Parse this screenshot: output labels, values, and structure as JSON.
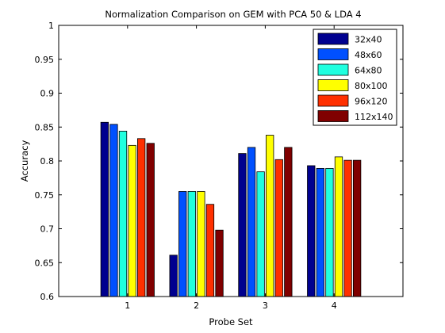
{
  "chart_data": {
    "type": "bar",
    "title": "Normalization Comparison on GEM with PCA 50 & LDA 4",
    "xlabel": "Probe Set",
    "ylabel": "Accuracy",
    "categories": [
      "1",
      "2",
      "3",
      "4"
    ],
    "xlim": [
      0,
      5
    ],
    "ylim": [
      0.6,
      1.0
    ],
    "yticks": [
      "0.6",
      "0.65",
      "0.7",
      "0.75",
      "0.8",
      "0.85",
      "0.9",
      "0.95",
      "1"
    ],
    "legend_position": "top-right",
    "grid": false,
    "series": [
      {
        "name": "32x40",
        "color": "#00008f",
        "values": [
          0.857,
          0.661,
          0.811,
          0.793
        ]
      },
      {
        "name": "48x60",
        "color": "#0050ff",
        "values": [
          0.854,
          0.755,
          0.82,
          0.789
        ]
      },
      {
        "name": "64x80",
        "color": "#20ffdf",
        "values": [
          0.844,
          0.755,
          0.784,
          0.789
        ]
      },
      {
        "name": "80x100",
        "color": "#ffff00",
        "values": [
          0.823,
          0.755,
          0.838,
          0.806
        ]
      },
      {
        "name": "96x120",
        "color": "#ff3000",
        "values": [
          0.833,
          0.736,
          0.802,
          0.801
        ]
      },
      {
        "name": "112x140",
        "color": "#800000",
        "values": [
          0.826,
          0.698,
          0.82,
          0.801
        ]
      }
    ]
  }
}
